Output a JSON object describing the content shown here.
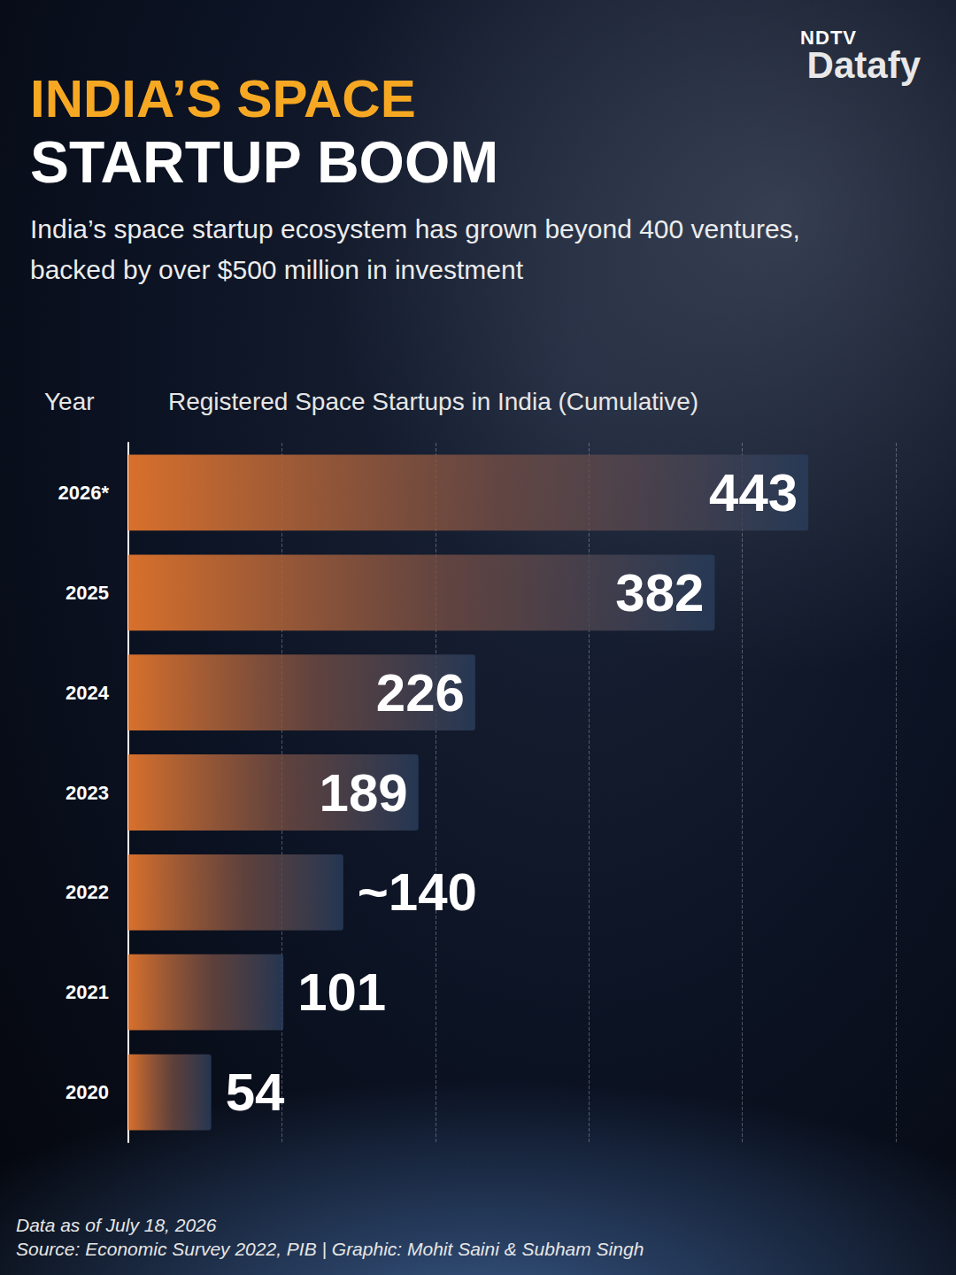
{
  "chart_data": {
    "type": "bar",
    "orientation": "horizontal",
    "logo": [
      "NDTV",
      "Datafy"
    ],
    "title": [
      "INDIA’S SPACE",
      "STARTUP BOOM"
    ],
    "subtitle": "India’s space startup ecosystem has grown beyond 400 ventures, backed by over $500 million in investment",
    "ylabel": "Year",
    "xlabel": "Registered Space Startups in India (Cumulative)",
    "categories": [
      "2026*",
      "2025",
      "2024",
      "2023",
      "2022",
      "2021",
      "2020"
    ],
    "values": [
      443,
      382,
      226,
      189,
      140,
      101,
      54
    ],
    "value_labels": [
      "443",
      "382",
      "226",
      "189",
      "~140",
      "101",
      "54"
    ],
    "data_labels": true,
    "xlim": [
      0,
      500
    ],
    "xticks": [
      0,
      100,
      200,
      300,
      400,
      500
    ],
    "tick_labels": "y",
    "grid": true,
    "color": "#d8702c",
    "note": "Data as of July 18, 2026",
    "source": "Source: Economic Survey 2022, PIB  | Graphic: Mohit Saini & Subham Singh"
  }
}
